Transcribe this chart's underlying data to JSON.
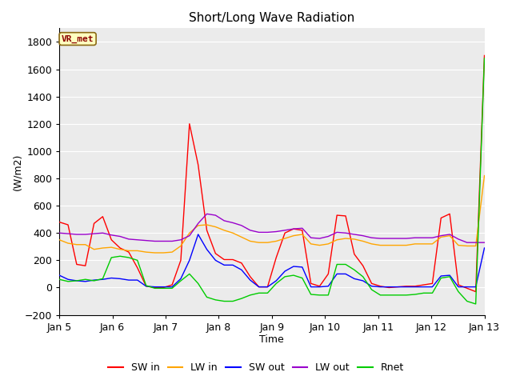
{
  "title": "Short/Long Wave Radiation",
  "xlabel": "Time",
  "ylabel": "(W/m2)",
  "ylim": [
    -200,
    1900
  ],
  "yticks": [
    -200,
    0,
    200,
    400,
    600,
    800,
    1000,
    1200,
    1400,
    1600,
    1800
  ],
  "annotation_text": "VR_met",
  "annotation_color": "#8B0000",
  "annotation_bg": "#FFFFC0",
  "annotation_border": "#8B6914",
  "background_color": "#EBEBEB",
  "legend_labels": [
    "SW in",
    "LW in",
    "SW out",
    "LW out",
    "Rnet"
  ],
  "line_colors": {
    "SW in": "#FF0000",
    "LW in": "#FFA500",
    "SW out": "#0000FF",
    "LW out": "#9900CC",
    "Rnet": "#00CC00"
  },
  "x_tick_labels": [
    "Jan 5",
    "Jan 6",
    "Jan 7",
    "Jan 8",
    "Jan 9",
    "Jan 10",
    "Jan 11",
    "Jan 12",
    "Jan 13"
  ],
  "x_tick_positions": [
    0,
    1,
    2,
    3,
    4,
    5,
    6,
    7,
    8
  ],
  "xlim": [
    0,
    8
  ],
  "SW_in": [
    480,
    460,
    170,
    160,
    470,
    520,
    350,
    290,
    260,
    145,
    10,
    0,
    0,
    20,
    200,
    1200,
    900,
    420,
    250,
    205,
    205,
    180,
    80,
    5,
    5,
    220,
    400,
    430,
    420,
    30,
    10,
    100,
    530,
    525,
    245,
    160,
    30,
    10,
    0,
    5,
    10,
    10,
    20,
    30,
    510,
    540,
    20,
    -5,
    -30,
    1700
  ],
  "LW_in": [
    350,
    325,
    315,
    315,
    280,
    290,
    295,
    280,
    270,
    270,
    260,
    255,
    255,
    260,
    305,
    400,
    455,
    460,
    445,
    420,
    400,
    370,
    340,
    330,
    330,
    340,
    360,
    380,
    390,
    320,
    310,
    320,
    350,
    360,
    355,
    340,
    320,
    310,
    310,
    310,
    310,
    320,
    320,
    320,
    370,
    380,
    310,
    305,
    305,
    820
  ],
  "SW_out": [
    90,
    60,
    50,
    45,
    55,
    60,
    70,
    65,
    55,
    55,
    10,
    5,
    5,
    5,
    65,
    200,
    390,
    280,
    200,
    165,
    165,
    130,
    55,
    5,
    5,
    50,
    120,
    155,
    150,
    5,
    5,
    10,
    100,
    100,
    65,
    50,
    10,
    5,
    5,
    5,
    5,
    5,
    5,
    5,
    85,
    90,
    5,
    5,
    5,
    290
  ],
  "LW_out": [
    400,
    395,
    390,
    390,
    395,
    400,
    385,
    375,
    355,
    350,
    345,
    340,
    340,
    340,
    350,
    380,
    470,
    540,
    530,
    490,
    475,
    455,
    420,
    405,
    405,
    410,
    420,
    430,
    435,
    365,
    360,
    375,
    405,
    400,
    390,
    380,
    365,
    360,
    360,
    360,
    360,
    365,
    365,
    365,
    380,
    390,
    355,
    330,
    330,
    330
  ],
  "Rnet": [
    60,
    45,
    50,
    60,
    50,
    65,
    220,
    230,
    220,
    200,
    15,
    -5,
    -5,
    -5,
    50,
    100,
    30,
    -70,
    -90,
    -100,
    -100,
    -80,
    -55,
    -40,
    -40,
    30,
    80,
    90,
    70,
    -50,
    -55,
    -55,
    170,
    170,
    130,
    80,
    -15,
    -55,
    -55,
    -55,
    -55,
    -50,
    -40,
    -40,
    70,
    80,
    -30,
    -100,
    -120,
    1680
  ]
}
